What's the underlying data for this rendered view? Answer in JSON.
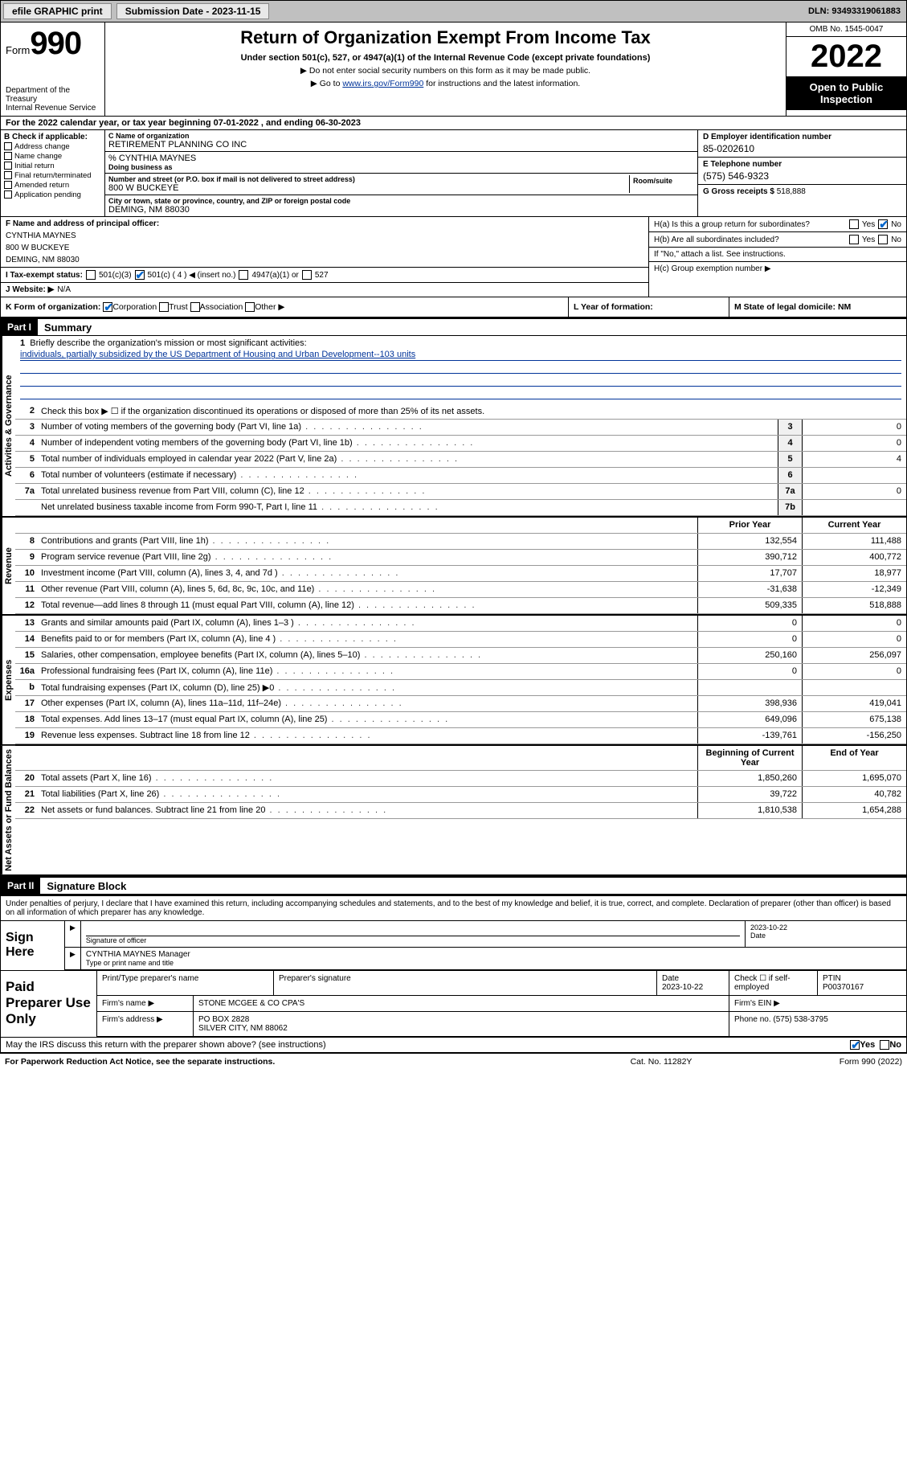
{
  "topbar": {
    "efile": "efile GRAPHIC print",
    "subdate_label": "Submission Date - 2023-11-15",
    "dln": "DLN: 93493319061883"
  },
  "head": {
    "form_word": "Form",
    "form_num": "990",
    "dept": "Department of the Treasury\nInternal Revenue Service",
    "title": "Return of Organization Exempt From Income Tax",
    "sub": "Under section 501(c), 527, or 4947(a)(1) of the Internal Revenue Code (except private foundations)",
    "line1": "▶ Do not enter social security numbers on this form as it may be made public.",
    "line2_pre": "▶ Go to ",
    "line2_link": "www.irs.gov/Form990",
    "line2_post": " for instructions and the latest information.",
    "omb": "OMB No. 1545-0047",
    "year": "2022",
    "open": "Open to Public Inspection"
  },
  "A": "For the 2022 calendar year, or tax year beginning 07-01-2022   , and ending 06-30-2023",
  "B": {
    "hdr": "B Check if applicable:",
    "opts": [
      "Address change",
      "Name change",
      "Initial return",
      "Final return/terminated",
      "Amended return",
      "Application pending"
    ]
  },
  "C": {
    "name_lab": "C Name of organization",
    "name": "RETIREMENT PLANNING CO INC",
    "care_lab": "% CYNTHIA MAYNES",
    "dba_lab": "Doing business as",
    "addr_lab": "Number and street (or P.O. box if mail is not delivered to street address)",
    "room_lab": "Room/suite",
    "addr": "800 W BUCKEYE",
    "city_lab": "City or town, state or province, country, and ZIP or foreign postal code",
    "city": "DEMING, NM  88030"
  },
  "D": {
    "lab": "D Employer identification number",
    "val": "85-0202610"
  },
  "E": {
    "lab": "E Telephone number",
    "val": "(575) 546-9323"
  },
  "G": {
    "lab": "G Gross receipts $",
    "val": "518,888"
  },
  "F": {
    "lab": "F  Name and address of principal officer:",
    "name": "CYNTHIA MAYNES",
    "addr1": "800 W BUCKEYE",
    "addr2": "DEMING, NM  88030"
  },
  "H": {
    "a": "H(a)  Is this a group return for subordinates?",
    "b": "H(b)  Are all subordinates included?",
    "b2": "If \"No,\" attach a list. See instructions.",
    "c": "H(c)  Group exemption number ▶"
  },
  "I": {
    "lab": "I   Tax-exempt status:",
    "o1": "501(c)(3)",
    "o2": "501(c) ( 4 ) ◀ (insert no.)",
    "o3": "4947(a)(1) or",
    "o4": "527"
  },
  "J": {
    "lab": "J   Website: ▶",
    "val": "N/A"
  },
  "K": {
    "lab": "K Form of organization:",
    "opts": [
      "Corporation",
      "Trust",
      "Association",
      "Other ▶"
    ]
  },
  "L": "L Year of formation:",
  "M": "M State of legal domicile: NM",
  "part1": "Part I",
  "part1_title": "Summary",
  "gov_label": "Activities & Governance",
  "rev_label": "Revenue",
  "exp_label": "Expenses",
  "net_label": "Net Assets or Fund Balances",
  "mission": {
    "num": "1",
    "lab": "Briefly describe the organization's mission or most significant activities:",
    "text": "individuals, partially subsidized by the US Department of Housing and Urban Development--103 units"
  },
  "line2": "Check this box ▶ ☐  if the organization discontinued its operations or disposed of more than 25% of its net assets.",
  "govlines": [
    {
      "n": "3",
      "d": "Number of voting members of the governing body (Part VI, line 1a)",
      "b": "3",
      "v": "0"
    },
    {
      "n": "4",
      "d": "Number of independent voting members of the governing body (Part VI, line 1b)",
      "b": "4",
      "v": "0"
    },
    {
      "n": "5",
      "d": "Total number of individuals employed in calendar year 2022 (Part V, line 2a)",
      "b": "5",
      "v": "4"
    },
    {
      "n": "6",
      "d": "Total number of volunteers (estimate if necessary)",
      "b": "6",
      "v": ""
    },
    {
      "n": "7a",
      "d": "Total unrelated business revenue from Part VIII, column (C), line 12",
      "b": "7a",
      "v": "0"
    },
    {
      "n": "",
      "d": "Net unrelated business taxable income from Form 990-T, Part I, line 11",
      "b": "7b",
      "v": ""
    }
  ],
  "colhdr": {
    "prior": "Prior Year",
    "current": "Current Year"
  },
  "revlines": [
    {
      "n": "8",
      "d": "Contributions and grants (Part VIII, line 1h)",
      "p": "132,554",
      "c": "111,488"
    },
    {
      "n": "9",
      "d": "Program service revenue (Part VIII, line 2g)",
      "p": "390,712",
      "c": "400,772"
    },
    {
      "n": "10",
      "d": "Investment income (Part VIII, column (A), lines 3, 4, and 7d )",
      "p": "17,707",
      "c": "18,977"
    },
    {
      "n": "11",
      "d": "Other revenue (Part VIII, column (A), lines 5, 6d, 8c, 9c, 10c, and 11e)",
      "p": "-31,638",
      "c": "-12,349"
    },
    {
      "n": "12",
      "d": "Total revenue—add lines 8 through 11 (must equal Part VIII, column (A), line 12)",
      "p": "509,335",
      "c": "518,888"
    }
  ],
  "explines": [
    {
      "n": "13",
      "d": "Grants and similar amounts paid (Part IX, column (A), lines 1–3 )",
      "p": "0",
      "c": "0"
    },
    {
      "n": "14",
      "d": "Benefits paid to or for members (Part IX, column (A), line 4 )",
      "p": "0",
      "c": "0"
    },
    {
      "n": "15",
      "d": "Salaries, other compensation, employee benefits (Part IX, column (A), lines 5–10)",
      "p": "250,160",
      "c": "256,097"
    },
    {
      "n": "16a",
      "d": "Professional fundraising fees (Part IX, column (A), line 11e)",
      "p": "0",
      "c": "0"
    },
    {
      "n": "b",
      "d": "Total fundraising expenses (Part IX, column (D), line 25) ▶0",
      "p": "",
      "c": ""
    },
    {
      "n": "17",
      "d": "Other expenses (Part IX, column (A), lines 11a–11d, 11f–24e)",
      "p": "398,936",
      "c": "419,041"
    },
    {
      "n": "18",
      "d": "Total expenses. Add lines 13–17 (must equal Part IX, column (A), line 25)",
      "p": "649,096",
      "c": "675,138"
    },
    {
      "n": "19",
      "d": "Revenue less expenses. Subtract line 18 from line 12",
      "p": "-139,761",
      "c": "-156,250"
    }
  ],
  "nethdr": {
    "b": "Beginning of Current Year",
    "e": "End of Year"
  },
  "netlines": [
    {
      "n": "20",
      "d": "Total assets (Part X, line 16)",
      "p": "1,850,260",
      "c": "1,695,070"
    },
    {
      "n": "21",
      "d": "Total liabilities (Part X, line 26)",
      "p": "39,722",
      "c": "40,782"
    },
    {
      "n": "22",
      "d": "Net assets or fund balances. Subtract line 21 from line 20",
      "p": "1,810,538",
      "c": "1,654,288"
    }
  ],
  "part2": "Part II",
  "part2_title": "Signature Block",
  "decl": "Under penalties of perjury, I declare that I have examined this return, including accompanying schedules and statements, and to the best of my knowledge and belief, it is true, correct, and complete. Declaration of preparer (other than officer) is based on all information of which preparer has any knowledge.",
  "sign": {
    "here": "Sign Here",
    "sigoff": "Signature of officer",
    "date": "2023-10-22",
    "date_lab": "Date",
    "name": "CYNTHIA MAYNES  Manager",
    "name_lab": "Type or print name and title"
  },
  "prep": {
    "label": "Paid Preparer Use Only",
    "h1": "Print/Type preparer's name",
    "h2": "Preparer's signature",
    "h3": "Date",
    "h3v": "2023-10-22",
    "h4": "Check ☐ if self-employed",
    "h5": "PTIN",
    "h5v": "P00370167",
    "firm_lab": "Firm's name    ▶",
    "firm": "STONE MCGEE & CO CPA'S",
    "ein_lab": "Firm's EIN ▶",
    "addr_lab": "Firm's address ▶",
    "addr1": "PO BOX 2828",
    "addr2": "SILVER CITY, NM  88062",
    "phone_lab": "Phone no.",
    "phone": "(575) 538-3795"
  },
  "mayirs": "May the IRS discuss this return with the preparer shown above? (see instructions)",
  "yes": "Yes",
  "no": "No",
  "footer": {
    "f1": "For Paperwork Reduction Act Notice, see the separate instructions.",
    "f2": "Cat. No. 11282Y",
    "f3": "Form 990 (2022)"
  }
}
